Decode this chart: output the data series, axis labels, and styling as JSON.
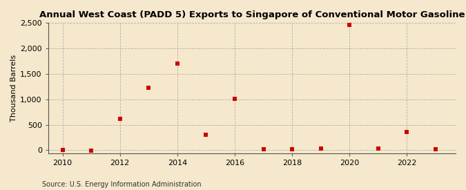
{
  "title": "Annual West Coast (PADD 5) Exports to Singapore of Conventional Motor Gasoline",
  "ylabel": "Thousand Barrels",
  "source": "Source: U.S. Energy Information Administration",
  "years": [
    2010,
    2011,
    2012,
    2013,
    2014,
    2015,
    2016,
    2017,
    2018,
    2019,
    2020,
    2021,
    2022,
    2023
  ],
  "values": [
    0,
    -8,
    610,
    1221,
    1703,
    300,
    1008,
    20,
    18,
    28,
    2470,
    28,
    360,
    18
  ],
  "marker_color": "#cc0000",
  "bg_color": "#f5e8cc",
  "plot_bg_color": "#f5e8cc",
  "grid_color": "#999999",
  "ylim_bottom": -60,
  "ylim_top": 2500,
  "yticks": [
    0,
    500,
    1000,
    1500,
    2000,
    2500
  ],
  "xlim": [
    2009.5,
    2023.7
  ],
  "xticks": [
    2010,
    2012,
    2014,
    2016,
    2018,
    2020,
    2022
  ],
  "title_fontsize": 9.5,
  "tick_fontsize": 8,
  "ylabel_fontsize": 8,
  "source_fontsize": 7
}
